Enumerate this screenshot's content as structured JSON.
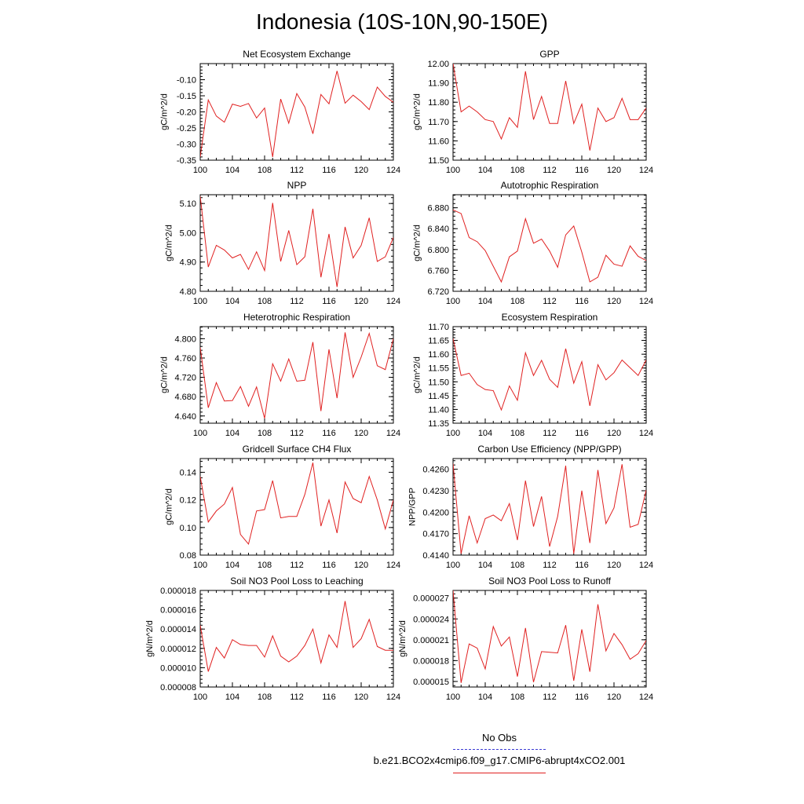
{
  "title": "Indonesia (10S-10N,90-150E)",
  "legend": {
    "obs_label": "No Obs",
    "run_label": "b.e21.BCO2x4cmip6.f09_g17.CMIP6-abrupt4xCO2.001",
    "obs_color": "#3b3bd4",
    "run_color": "#e02020"
  },
  "chart_data": [
    {
      "type": "line",
      "title": "Net Ecosystem Exchange",
      "ylabel": "gC/m^2/d",
      "xlabel": "",
      "xlim": [
        100,
        124
      ],
      "ylim": [
        -0.35,
        -0.05
      ],
      "xticks": [
        "100",
        "104",
        "108",
        "112",
        "116",
        "120",
        "124"
      ],
      "yticks": [
        "-0.10",
        "-0.15",
        "-0.20",
        "-0.25",
        "-0.30",
        "-0.35"
      ],
      "x": [
        100,
        101,
        102,
        103,
        104,
        105,
        106,
        107,
        108,
        109,
        110,
        111,
        112,
        113,
        114,
        115,
        116,
        117,
        118,
        119,
        120,
        121,
        122,
        123,
        124
      ],
      "series": [
        {
          "name": "b.e21.BCO2x4cmip6.f09_g17.CMIP6-abrupt4xCO2.001",
          "values": [
            -0.34,
            -0.163,
            -0.213,
            -0.232,
            -0.176,
            -0.183,
            -0.174,
            -0.219,
            -0.188,
            -0.34,
            -0.16,
            -0.235,
            -0.143,
            -0.185,
            -0.268,
            -0.146,
            -0.175,
            -0.073,
            -0.173,
            -0.148,
            -0.168,
            -0.193,
            -0.123,
            -0.152,
            -0.17
          ]
        }
      ]
    },
    {
      "type": "line",
      "title": "GPP",
      "ylabel": "gC/m^2/d",
      "xlabel": "",
      "xlim": [
        100,
        124
      ],
      "ylim": [
        11.5,
        12.0
      ],
      "xticks": [
        "100",
        "104",
        "108",
        "112",
        "116",
        "120",
        "124"
      ],
      "yticks": [
        "12.00",
        "11.90",
        "11.80",
        "11.70",
        "11.60",
        "11.50"
      ],
      "x": [
        100,
        101,
        102,
        103,
        104,
        105,
        106,
        107,
        108,
        109,
        110,
        111,
        112,
        113,
        114,
        115,
        116,
        117,
        118,
        119,
        120,
        121,
        122,
        123,
        124
      ],
      "series": [
        {
          "name": "b.e21.BCO2x4cmip6.f09_g17.CMIP6-abrupt4xCO2.001",
          "values": [
            12.0,
            11.75,
            11.78,
            11.75,
            11.71,
            11.7,
            11.61,
            11.72,
            11.67,
            11.96,
            11.71,
            11.83,
            11.69,
            11.69,
            11.91,
            11.69,
            11.79,
            11.55,
            11.77,
            11.7,
            11.72,
            11.82,
            11.71,
            11.71,
            11.77
          ]
        }
      ]
    },
    {
      "type": "line",
      "title": "NPP",
      "ylabel": "gC/m^2/d",
      "xlabel": "",
      "xlim": [
        100,
        124
      ],
      "ylim": [
        4.8,
        5.13
      ],
      "xticks": [
        "100",
        "104",
        "108",
        "112",
        "116",
        "120",
        "124"
      ],
      "yticks": [
        "5.10",
        "5.00",
        "4.90",
        "4.80"
      ],
      "x": [
        100,
        101,
        102,
        103,
        104,
        105,
        106,
        107,
        108,
        109,
        110,
        111,
        112,
        113,
        114,
        115,
        116,
        117,
        118,
        119,
        120,
        121,
        122,
        123,
        124
      ],
      "series": [
        {
          "name": "b.e21.BCO2x4cmip6.f09_g17.CMIP6-abrupt4xCO2.001",
          "values": [
            5.125,
            4.883,
            4.957,
            4.941,
            4.914,
            4.926,
            4.875,
            4.935,
            4.871,
            5.102,
            4.902,
            5.008,
            4.891,
            4.918,
            5.082,
            4.848,
            4.996,
            4.815,
            5.02,
            4.914,
            4.957,
            5.051,
            4.902,
            4.918,
            4.984
          ]
        }
      ]
    },
    {
      "type": "line",
      "title": "Autotrophic Respiration",
      "ylabel": "gC/m^2/d",
      "xlabel": "",
      "xlim": [
        100,
        124
      ],
      "ylim": [
        6.72,
        6.905
      ],
      "xticks": [
        "100",
        "104",
        "108",
        "112",
        "116",
        "120",
        "124"
      ],
      "yticks": [
        "6.880",
        "6.840",
        "6.800",
        "6.760",
        "6.720"
      ],
      "x": [
        100,
        101,
        102,
        103,
        104,
        105,
        106,
        107,
        108,
        109,
        110,
        111,
        112,
        113,
        114,
        115,
        116,
        117,
        118,
        119,
        120,
        121,
        122,
        123,
        124
      ],
      "series": [
        {
          "name": "b.e21.BCO2x4cmip6.f09_g17.CMIP6-abrupt4xCO2.001",
          "values": [
            6.876,
            6.869,
            6.823,
            6.815,
            6.798,
            6.768,
            6.738,
            6.786,
            6.797,
            6.859,
            6.812,
            6.82,
            6.797,
            6.766,
            6.828,
            6.845,
            6.795,
            6.738,
            6.747,
            6.789,
            6.772,
            6.768,
            6.807,
            6.787,
            6.779
          ]
        }
      ]
    },
    {
      "type": "line",
      "title": "Heterotrophic Respiration",
      "ylabel": "gC/m^2/d",
      "xlabel": "",
      "xlim": [
        100,
        124
      ],
      "ylim": [
        4.625,
        4.825
      ],
      "xticks": [
        "100",
        "104",
        "108",
        "112",
        "116",
        "120",
        "124"
      ],
      "yticks": [
        "4.800",
        "4.760",
        "4.720",
        "4.680",
        "4.640"
      ],
      "x": [
        100,
        101,
        102,
        103,
        104,
        105,
        106,
        107,
        108,
        109,
        110,
        111,
        112,
        113,
        114,
        115,
        116,
        117,
        118,
        119,
        120,
        121,
        122,
        123,
        124
      ],
      "series": [
        {
          "name": "b.e21.BCO2x4cmip6.f09_g17.CMIP6-abrupt4xCO2.001",
          "values": [
            4.782,
            4.657,
            4.709,
            4.671,
            4.672,
            4.701,
            4.66,
            4.7,
            4.635,
            4.748,
            4.712,
            4.758,
            4.712,
            4.714,
            4.793,
            4.65,
            4.778,
            4.677,
            4.813,
            4.72,
            4.762,
            4.811,
            4.744,
            4.736,
            4.8
          ]
        }
      ]
    },
    {
      "type": "line",
      "title": "Ecosystem Respiration",
      "ylabel": "gC/m^2/d",
      "xlabel": "",
      "xlim": [
        100,
        124
      ],
      "ylim": [
        11.35,
        11.7
      ],
      "xticks": [
        "100",
        "104",
        "108",
        "112",
        "116",
        "120",
        "124"
      ],
      "yticks": [
        "11.70",
        "11.65",
        "11.60",
        "11.55",
        "11.50",
        "11.45",
        "11.40",
        "11.35"
      ],
      "x": [
        100,
        101,
        102,
        103,
        104,
        105,
        106,
        107,
        108,
        109,
        110,
        111,
        112,
        113,
        114,
        115,
        116,
        117,
        118,
        119,
        120,
        121,
        122,
        123,
        124
      ],
      "series": [
        {
          "name": "b.e21.BCO2x4cmip6.f09_g17.CMIP6-abrupt4xCO2.001",
          "values": [
            11.657,
            11.523,
            11.531,
            11.49,
            11.472,
            11.468,
            11.398,
            11.485,
            11.433,
            11.605,
            11.523,
            11.578,
            11.509,
            11.48,
            11.62,
            11.495,
            11.573,
            11.413,
            11.562,
            11.507,
            11.533,
            11.579,
            11.551,
            11.523,
            11.579
          ]
        }
      ]
    },
    {
      "type": "line",
      "title": "Gridcell Surface CH4 Flux",
      "ylabel": "gC/m^2/d",
      "xlabel": "",
      "xlim": [
        100,
        124
      ],
      "ylim": [
        0.08,
        0.15
      ],
      "xticks": [
        "100",
        "104",
        "108",
        "112",
        "116",
        "120",
        "124"
      ],
      "yticks": [
        "0.14",
        "0.12",
        "0.10",
        "0.08"
      ],
      "x": [
        100,
        101,
        102,
        103,
        104,
        105,
        106,
        107,
        108,
        109,
        110,
        111,
        112,
        113,
        114,
        115,
        116,
        117,
        118,
        119,
        120,
        121,
        122,
        123,
        124
      ],
      "series": [
        {
          "name": "b.e21.BCO2x4cmip6.f09_g17.CMIP6-abrupt4xCO2.001",
          "values": [
            0.137,
            0.104,
            0.112,
            0.117,
            0.129,
            0.095,
            0.088,
            0.112,
            0.113,
            0.134,
            0.107,
            0.108,
            0.108,
            0.124,
            0.147,
            0.101,
            0.12,
            0.096,
            0.133,
            0.121,
            0.118,
            0.137,
            0.12,
            0.099,
            0.12
          ]
        }
      ]
    },
    {
      "type": "line",
      "title": "Carbon Use Efficiency (NPP/GPP)",
      "ylabel": "NPP/GPP",
      "xlabel": "",
      "xlim": [
        100,
        124
      ],
      "ylim": [
        0.414,
        0.4275
      ],
      "xticks": [
        "100",
        "104",
        "108",
        "112",
        "116",
        "120",
        "124"
      ],
      "yticks": [
        "0.4260",
        "0.4230",
        "0.4200",
        "0.4170",
        "0.4140"
      ],
      "x": [
        100,
        101,
        102,
        103,
        104,
        105,
        106,
        107,
        108,
        109,
        110,
        111,
        112,
        113,
        114,
        115,
        116,
        117,
        118,
        119,
        120,
        121,
        122,
        123,
        124
      ],
      "series": [
        {
          "name": "b.e21.BCO2x4cmip6.f09_g17.CMIP6-abrupt4xCO2.001",
          "values": [
            0.4268,
            0.4142,
            0.4195,
            0.4157,
            0.4191,
            0.4196,
            0.4188,
            0.4212,
            0.4161,
            0.4244,
            0.418,
            0.4222,
            0.4152,
            0.4194,
            0.4265,
            0.4142,
            0.423,
            0.4157,
            0.4259,
            0.4184,
            0.4206,
            0.4267,
            0.4179,
            0.4183,
            0.4231
          ]
        }
      ]
    },
    {
      "type": "line",
      "title": "Soil NO3 Pool Loss to Leaching",
      "ylabel": "gN/m^2/d",
      "xlabel": "",
      "xlim": [
        100,
        124
      ],
      "ylim": [
        8e-06,
        1.8e-05
      ],
      "xticks": [
        "100",
        "104",
        "108",
        "112",
        "116",
        "120",
        "124"
      ],
      "yticks": [
        "0.000018",
        "0.000016",
        "0.000014",
        "0.000012",
        "0.000010",
        "0.000008"
      ],
      "x": [
        100,
        101,
        102,
        103,
        104,
        105,
        106,
        107,
        108,
        109,
        110,
        111,
        112,
        113,
        114,
        115,
        116,
        117,
        118,
        119,
        120,
        121,
        122,
        123,
        124
      ],
      "series": [
        {
          "name": "b.e21.BCO2x4cmip6.f09_g17.CMIP6-abrupt4xCO2.001",
          "values": [
            1.44e-05,
            9.6e-06,
            1.21e-05,
            1.1e-05,
            1.29e-05,
            1.24e-05,
            1.23e-05,
            1.23e-05,
            1.11e-05,
            1.33e-05,
            1.12e-05,
            1.06e-05,
            1.12e-05,
            1.23e-05,
            1.4e-05,
            1.05e-05,
            1.34e-05,
            1.21e-05,
            1.69e-05,
            1.21e-05,
            1.3e-05,
            1.5e-05,
            1.22e-05,
            1.18e-05,
            1.18e-05
          ]
        }
      ]
    },
    {
      "type": "line",
      "title": "Soil NO3 Pool Loss to Runoff",
      "ylabel": "gN/m^2/d",
      "xlabel": "",
      "xlim": [
        100,
        124
      ],
      "ylim": [
        1.42e-05,
        2.81e-05
      ],
      "xticks": [
        "100",
        "104",
        "108",
        "112",
        "116",
        "120",
        "124"
      ],
      "yticks": [
        "0.000027",
        "0.000024",
        "0.000021",
        "0.000018",
        "0.000015"
      ],
      "x": [
        100,
        101,
        102,
        103,
        104,
        105,
        106,
        107,
        108,
        109,
        110,
        111,
        112,
        113,
        114,
        115,
        116,
        117,
        118,
        119,
        120,
        121,
        122,
        123,
        124
      ],
      "series": [
        {
          "name": "b.e21.BCO2x4cmip6.f09_g17.CMIP6-abrupt4xCO2.001",
          "values": [
            2.81e-05,
            1.48e-05,
            2.04e-05,
            1.98e-05,
            1.68e-05,
            2.29e-05,
            2.01e-05,
            2.14e-05,
            1.57e-05,
            2.27e-05,
            1.49e-05,
            1.93e-05,
            1.92e-05,
            1.91e-05,
            2.31e-05,
            1.51e-05,
            2.25e-05,
            1.64e-05,
            2.61e-05,
            1.94e-05,
            2.19e-05,
            2.03e-05,
            1.82e-05,
            1.9e-05,
            2.09e-05
          ]
        }
      ]
    }
  ]
}
